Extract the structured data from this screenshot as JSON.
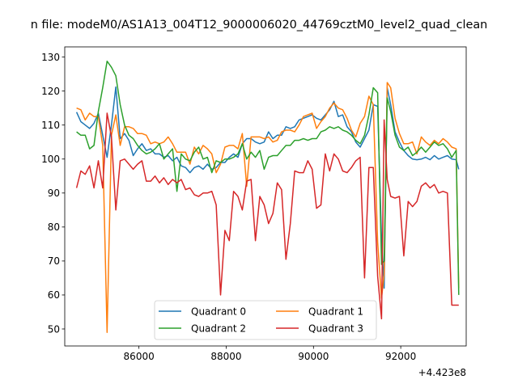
{
  "chart_data": {
    "type": "line",
    "title": "n file: modeM0/AS1A13_004T12_9000006020_44769cztM0_level2_quad_clean",
    "xlabel": "",
    "ylabel": "",
    "x_offset_label": "+4.423e8",
    "xlim": [
      84300,
      93500
    ],
    "ylim": [
      45,
      133
    ],
    "x_ticks": [
      86000,
      88000,
      90000,
      92000
    ],
    "x_tick_labels": [
      "86000",
      "88000",
      "90000",
      "92000"
    ],
    "y_ticks": [
      50,
      60,
      70,
      80,
      90,
      100,
      110,
      120,
      130
    ],
    "y_tick_labels": [
      "50",
      "60",
      "70",
      "80",
      "90",
      "100",
      "110",
      "120",
      "130"
    ],
    "grid": false,
    "legend_position": "lower center",
    "legend_columns": 2,
    "x": [
      84570,
      84670,
      84770,
      84870,
      84970,
      85070,
      85170,
      85270,
      85370,
      85470,
      85570,
      85670,
      85770,
      85870,
      85970,
      86070,
      86170,
      86270,
      86370,
      86470,
      86570,
      86670,
      86770,
      86870,
      86970,
      87070,
      87170,
      87270,
      87370,
      87470,
      87570,
      87670,
      87770,
      87870,
      87970,
      88070,
      88170,
      88270,
      88370,
      88470,
      88570,
      88670,
      88770,
      88870,
      88970,
      89070,
      89170,
      89270,
      89370,
      89470,
      89570,
      89670,
      89770,
      89870,
      89970,
      90070,
      90170,
      90270,
      90370,
      90470,
      90570,
      90670,
      90770,
      90870,
      90970,
      91070,
      91170,
      91270,
      91370,
      91470,
      91560,
      91620,
      91690,
      91770,
      91870,
      91970,
      92070,
      92170,
      92270,
      92370,
      92470,
      92570,
      92670,
      92770,
      92870,
      92970,
      93070,
      93170,
      93270,
      93330
    ],
    "series": [
      {
        "name": "Quadrant 0",
        "color": "#1f77b4",
        "values": [
          113.8,
          111.0,
          110.0,
          109.0,
          110.5,
          113.5,
          107.0,
          100.5,
          110.0,
          121.2,
          106.0,
          107.5,
          105.5,
          101.0,
          103.0,
          104.5,
          102.5,
          103.0,
          101.5,
          101.5,
          100.5,
          101.0,
          99.5,
          100.5,
          98.0,
          97.5,
          96.0,
          97.5,
          98.0,
          97.0,
          98.5,
          97.0,
          97.5,
          99.0,
          99.0,
          100.5,
          101.5,
          100.5,
          104.5,
          106.0,
          106.0,
          105.0,
          104.5,
          105.0,
          108.0,
          106.0,
          107.0,
          107.0,
          109.5,
          109.0,
          109.5,
          111.5,
          112.0,
          112.5,
          113.0,
          112.0,
          111.5,
          113.0,
          114.5,
          117.0,
          112.5,
          113.0,
          109.5,
          108.0,
          105.0,
          103.5,
          106.0,
          108.5,
          116.0,
          115.5,
          76.5,
          62.0,
          121.0,
          116.0,
          108.0,
          105.0,
          102.5,
          101.0,
          100.0,
          99.8,
          100.0,
          100.5,
          99.8,
          101.0,
          100.0,
          100.5,
          101.0,
          100.0,
          99.8,
          97.0
        ]
      },
      {
        "name": "Quadrant 1",
        "color": "#ff7f0e",
        "values": [
          115.0,
          114.5,
          111.5,
          113.5,
          112.5,
          112.5,
          104.0,
          49.0,
          107.0,
          113.0,
          104.0,
          109.5,
          109.5,
          109.0,
          107.5,
          107.5,
          107.0,
          104.5,
          105.0,
          104.5,
          105.0,
          106.5,
          104.5,
          102.0,
          102.0,
          102.0,
          98.5,
          103.5,
          101.5,
          104.0,
          103.0,
          101.5,
          96.0,
          98.5,
          103.5,
          104.0,
          104.0,
          103.0,
          107.5,
          92.0,
          106.5,
          106.5,
          106.5,
          106.0,
          106.5,
          105.0,
          105.5,
          108.0,
          108.5,
          108.5,
          108.0,
          110.0,
          112.5,
          113.0,
          113.5,
          109.0,
          111.0,
          112.5,
          115.0,
          116.5,
          115.0,
          114.5,
          112.0,
          108.5,
          106.5,
          110.5,
          112.5,
          118.5,
          116.0,
          75.5,
          59.0,
          66.0,
          122.5,
          121.0,
          112.0,
          107.5,
          104.5,
          104.5,
          105.0,
          101.5,
          106.5,
          105.0,
          104.0,
          105.5,
          104.5,
          106.0,
          105.0,
          103.5,
          103.0,
          62.0
        ]
      },
      {
        "name": "Quadrant 2",
        "color": "#2ca02c",
        "values": [
          108.0,
          107.0,
          107.0,
          103.0,
          104.0,
          114.0,
          121.0,
          128.8,
          127.0,
          124.5,
          116.0,
          110.0,
          107.0,
          106.0,
          104.0,
          102.5,
          101.5,
          102.0,
          103.0,
          104.5,
          100.0,
          101.5,
          103.0,
          90.5,
          101.5,
          100.0,
          99.5,
          102.0,
          103.5,
          100.0,
          100.5,
          96.0,
          99.5,
          99.0,
          100.0,
          100.0,
          100.5,
          101.5,
          104.5,
          100.0,
          102.0,
          100.5,
          102.5,
          97.0,
          100.5,
          101.0,
          101.0,
          102.5,
          104.0,
          104.0,
          105.5,
          105.5,
          106.0,
          105.5,
          106.0,
          106.0,
          108.0,
          108.5,
          109.5,
          109.0,
          109.5,
          108.5,
          108.0,
          107.0,
          105.5,
          104.5,
          107.0,
          113.0,
          121.0,
          119.5,
          69.0,
          70.0,
          118.0,
          114.0,
          107.0,
          103.5,
          102.5,
          103.5,
          101.0,
          102.0,
          103.5,
          102.0,
          103.5,
          105.0,
          104.0,
          104.5,
          103.0,
          100.5,
          102.5,
          60.0
        ]
      },
      {
        "name": "Quadrant 3",
        "color": "#d62728",
        "values": [
          91.5,
          96.5,
          95.5,
          98.0,
          91.5,
          99.5,
          91.5,
          113.5,
          106.5,
          85.0,
          99.5,
          100.0,
          98.5,
          97.0,
          98.5,
          99.5,
          93.5,
          93.5,
          95.0,
          93.0,
          94.5,
          92.5,
          94.0,
          93.0,
          94.0,
          91.0,
          91.5,
          89.5,
          89.0,
          90.0,
          90.0,
          90.5,
          86.5,
          60.0,
          79.0,
          76.0,
          90.5,
          89.0,
          85.0,
          93.5,
          94.0,
          76.0,
          89.0,
          86.5,
          81.0,
          84.0,
          93.0,
          91.0,
          70.5,
          81.0,
          96.5,
          96.0,
          96.0,
          99.5,
          97.0,
          85.5,
          86.5,
          101.5,
          96.5,
          101.5,
          100.0,
          96.5,
          96.0,
          97.5,
          99.5,
          100.5,
          65.0,
          97.5,
          97.5,
          65.5,
          53.0,
          111.5,
          94.0,
          89.0,
          88.5,
          89.0,
          71.5,
          87.5,
          86.0,
          87.5,
          92.0,
          93.0,
          91.5,
          92.5,
          90.0,
          90.5,
          90.0,
          57.0,
          57.0,
          57.0
        ]
      }
    ]
  }
}
